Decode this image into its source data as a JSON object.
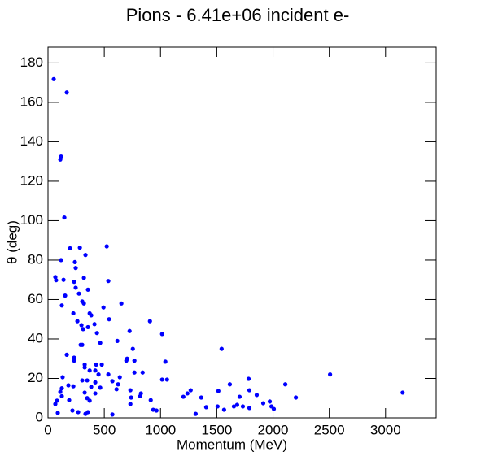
{
  "chart_data": {
    "type": "scatter",
    "title": "Pions - 6.41e+06 incident e-",
    "x_label": "Momentum (MeV)",
    "y_label": "θ (deg)",
    "color": "#0000ff",
    "xlim": [
      0,
      3450
    ],
    "ylim": [
      0,
      188
    ],
    "xticks": [
      0,
      500,
      1000,
      1500,
      2000,
      2500,
      3000
    ],
    "yticks": [
      0,
      20,
      40,
      60,
      80,
      100,
      120,
      140,
      160,
      180
    ],
    "x": [
      51,
      167,
      109,
      116,
      145,
      196,
      283,
      333,
      116,
      239,
      246,
      65,
      72,
      138,
      319,
      232,
      246,
      152,
      275,
      355,
      536,
      522,
      123,
      304,
      319,
      652,
      225,
      370,
      384,
      493,
      543,
      261,
      297,
      312,
      413,
      435,
      355,
      725,
      906,
      1014,
      290,
      304,
      464,
      616,
      167,
      232,
      232,
      754,
      1543,
      326,
      326,
      428,
      478,
      703,
      696,
      768,
      1043,
      370,
      420,
      449,
      536,
      768,
      841,
      638,
      1014,
      1058,
      572,
      130,
      304,
      348,
      420,
      623,
      181,
      225,
      123,
      384,
      464,
      609,
      732,
      109,
      123,
      326,
      420,
      826,
      819,
      348,
      739,
      370,
      80,
      65,
      188,
      732,
      913,
      217,
      268,
      333,
      355,
      87,
      572,
      935,
      964,
      1203,
      1239,
      1268,
      1312,
      1362,
      1406,
      1514,
      1507,
      1565,
      1616,
      1652,
      1681,
      1703,
      1732,
      1783,
      1790,
      1790,
      1855,
      1913,
      1971,
      1986,
      2007,
      2109,
      2203,
      2507,
      3152
    ],
    "values": [
      171.8,
      165,
      131,
      132.5,
      101.6,
      86,
      86.3,
      82.6,
      80,
      79,
      76,
      71.4,
      69.8,
      70,
      71,
      69,
      66,
      62,
      63,
      65,
      69.4,
      87,
      57,
      59,
      58,
      58,
      53,
      53,
      52,
      56,
      50,
      49,
      47,
      45,
      47.5,
      43,
      46,
      44,
      49,
      42.5,
      37,
      37,
      38,
      39,
      32,
      30.5,
      29,
      35,
      35,
      27,
      25.6,
      27,
      27,
      30,
      29,
      29,
      28.5,
      24,
      24,
      22,
      22,
      23,
      23,
      20.6,
      19.4,
      19.4,
      18.6,
      20.6,
      19,
      19,
      18,
      17,
      16.5,
      16,
      15,
      15.7,
      15.3,
      14.5,
      14,
      13.2,
      11,
      12.8,
      12.4,
      12.4,
      11,
      10,
      10.3,
      8.7,
      8.7,
      7,
      9,
      7,
      9,
      3.7,
      2.9,
      2,
      2.9,
      2.5,
      1.7,
      4.1,
      3.7,
      10.7,
      12.4,
      14,
      2,
      10.3,
      5.4,
      13.6,
      5.8,
      4.1,
      17,
      5.8,
      6.6,
      10.7,
      5.8,
      19.8,
      14,
      5,
      11.6,
      7.4,
      8.3,
      5.8,
      4.5,
      17,
      10.3,
      22,
      12.8
    ]
  }
}
